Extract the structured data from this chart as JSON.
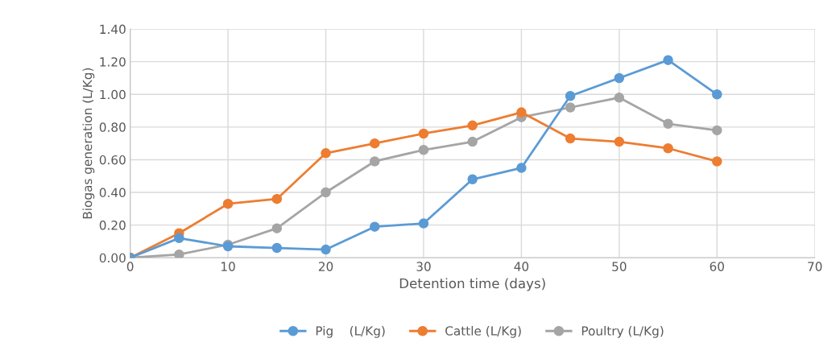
{
  "chart_data": {
    "type": "line",
    "xlabel": "Detention time (days)",
    "ylabel": "Biogas generation (L/Kg)",
    "x": [
      0,
      5,
      10,
      15,
      20,
      25,
      30,
      35,
      40,
      45,
      50,
      55,
      60
    ],
    "series": [
      {
        "name": "Pig    (L/Kg)",
        "color": "#5b9bd5",
        "values": [
          0,
          0.12,
          0.07,
          0.06,
          0.05,
          0.19,
          0.21,
          0.48,
          0.55,
          0.99,
          1.1,
          1.21,
          1.0
        ]
      },
      {
        "name": "Cattle (L/Kg)",
        "color": "#ed7d31",
        "values": [
          0,
          0.15,
          0.33,
          0.36,
          0.64,
          0.7,
          0.76,
          0.81,
          0.89,
          0.73,
          0.71,
          0.67,
          0.59
        ]
      },
      {
        "name": "Poultry (L/Kg)",
        "color": "#a5a5a5",
        "values": [
          0,
          0.02,
          0.08,
          0.18,
          0.4,
          0.59,
          0.66,
          0.71,
          0.86,
          0.92,
          0.98,
          0.82,
          0.78
        ]
      }
    ],
    "xlim": [
      0,
      70
    ],
    "xticks": [
      0,
      10,
      20,
      30,
      40,
      50,
      60,
      70
    ],
    "ylim": [
      0,
      1.4
    ],
    "yticks": [
      {
        "value": 0,
        "label": "0.00"
      },
      {
        "value": 0.2,
        "label": "0.20"
      },
      {
        "value": 0.4,
        "label": "0.40"
      },
      {
        "value": 0.6,
        "label": "0.60"
      },
      {
        "value": 0.8,
        "label": "0.80"
      },
      {
        "value": 1.0,
        "label": "1.00"
      },
      {
        "value": 1.2,
        "label": "1.20"
      },
      {
        "value": 1.4,
        "label": "1.40"
      }
    ],
    "grid": true,
    "legend": "bottom",
    "marker": "circle",
    "line_style": "solid"
  }
}
